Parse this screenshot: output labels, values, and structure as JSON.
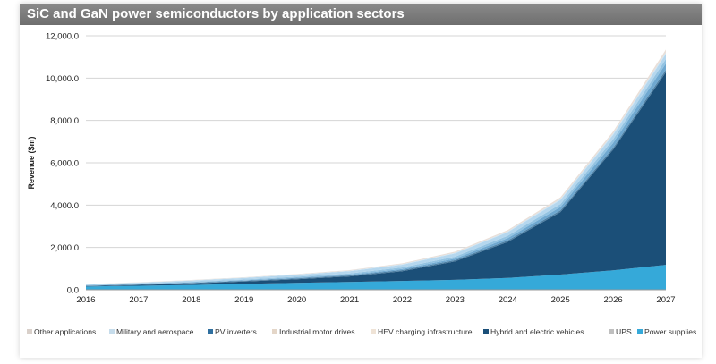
{
  "chart_data": {
    "type": "area",
    "stacked": true,
    "title": "SiC and GaN power semiconductors by application sectors",
    "xlabel": "",
    "ylabel": "Revenue ($m)",
    "ylim": [
      0,
      12000
    ],
    "yticks": [
      "0.0",
      "2,000.0",
      "4,000.0",
      "6,000.0",
      "8,000.0",
      "10,000.0",
      "12,000.0"
    ],
    "ytick_values": [
      0,
      2000,
      4000,
      6000,
      8000,
      10000,
      12000
    ],
    "categories": [
      "2016",
      "2017",
      "2018",
      "2019",
      "2020",
      "2021",
      "2022",
      "2023",
      "2024",
      "2025",
      "2026",
      "2027"
    ],
    "grid": true,
    "legend_position": "bottom",
    "series": [
      {
        "name": "Power supplies",
        "color": "#35a9d9",
        "values": [
          150,
          190,
          230,
          280,
          330,
          370,
          420,
          470,
          560,
          720,
          920,
          1180
        ]
      },
      {
        "name": "Hybrid and electric vehicles",
        "color": "#1b4f78",
        "values": [
          20,
          40,
          70,
          110,
          170,
          260,
          460,
          870,
          1700,
          2950,
          5700,
          9100
        ]
      },
      {
        "name": "UPS",
        "color": "#4d7fa3",
        "values": [
          20,
          25,
          30,
          35,
          40,
          45,
          50,
          60,
          70,
          80,
          90,
          110
        ]
      },
      {
        "name": "HEV charging infrastructure",
        "color": "#6fa8d0",
        "values": [
          10,
          15,
          20,
          25,
          30,
          40,
          55,
          75,
          110,
          160,
          230,
          300
        ]
      },
      {
        "name": "Industrial motor drives",
        "color": "#93c3e2",
        "values": [
          20,
          25,
          30,
          35,
          45,
          55,
          70,
          90,
          110,
          140,
          170,
          210
        ]
      },
      {
        "name": "PV inverters",
        "color": "#b5d7ee",
        "values": [
          30,
          40,
          55,
          70,
          90,
          110,
          130,
          150,
          170,
          190,
          210,
          240
        ]
      },
      {
        "name": "Military and aerospace",
        "color": "#cfe4f2",
        "values": [
          10,
          12,
          15,
          18,
          20,
          25,
          30,
          35,
          40,
          50,
          60,
          70
        ]
      },
      {
        "name": "Other applications",
        "color": "#e9dfd8",
        "values": [
          10,
          13,
          15,
          17,
          20,
          25,
          35,
          50,
          60,
          80,
          100,
          140
        ]
      }
    ],
    "legend": [
      {
        "label": "Other applications",
        "color": "#d9d0ca"
      },
      {
        "label": "Military and aerospace",
        "color": "#c6dceb"
      },
      {
        "label": "PV inverters",
        "color": "#2f6f9f"
      },
      {
        "label": "Industrial motor drives",
        "color": "#e4d6c8"
      },
      {
        "label": "HEV charging infrastructure",
        "color": "#efe3d6"
      },
      {
        "label": "Hybrid and electric vehicles",
        "color": "#1b4f78"
      },
      {
        "label": "UPS",
        "color": "#bfbfbf"
      },
      {
        "label": "Power supplies",
        "color": "#35a9d9"
      }
    ]
  }
}
